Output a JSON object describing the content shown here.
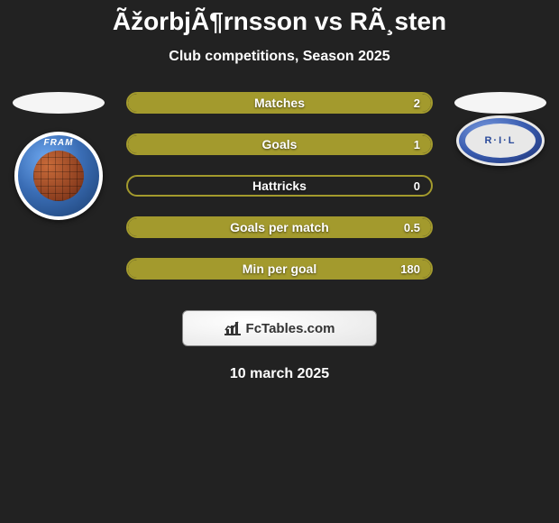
{
  "title": "ÃžorbjÃ¶rnsson vs RÃ¸sten",
  "subtitle": "Club competitions, Season 2025",
  "footer_brand": "FcTables.com",
  "footer_date": "10 march 2025",
  "left_badge_text": "FRAM",
  "right_badge_text": "R·I·L",
  "colors": {
    "background": "#222222",
    "bar_border_left": "#a39a2d",
    "bar_fill_full": "#a39a2d",
    "bar_border_only": "#a39a2d",
    "text_white": "#ffffff"
  },
  "stats": [
    {
      "label": "Matches",
      "right_value": "2",
      "fill_side": "right",
      "fill_pct": 100,
      "fill_color": "#a39a2d",
      "border_color": "#a39a2d"
    },
    {
      "label": "Goals",
      "right_value": "1",
      "fill_side": "right",
      "fill_pct": 100,
      "fill_color": "#a39a2d",
      "border_color": "#a39a2d"
    },
    {
      "label": "Hattricks",
      "right_value": "0",
      "fill_side": "none",
      "fill_pct": 0,
      "fill_color": "#a39a2d",
      "border_color": "#a39a2d"
    },
    {
      "label": "Goals per match",
      "right_value": "0.5",
      "fill_side": "right",
      "fill_pct": 100,
      "fill_color": "#a39a2d",
      "border_color": "#a39a2d"
    },
    {
      "label": "Min per goal",
      "right_value": "180",
      "fill_side": "right",
      "fill_pct": 100,
      "fill_color": "#a39a2d",
      "border_color": "#a39a2d"
    }
  ]
}
